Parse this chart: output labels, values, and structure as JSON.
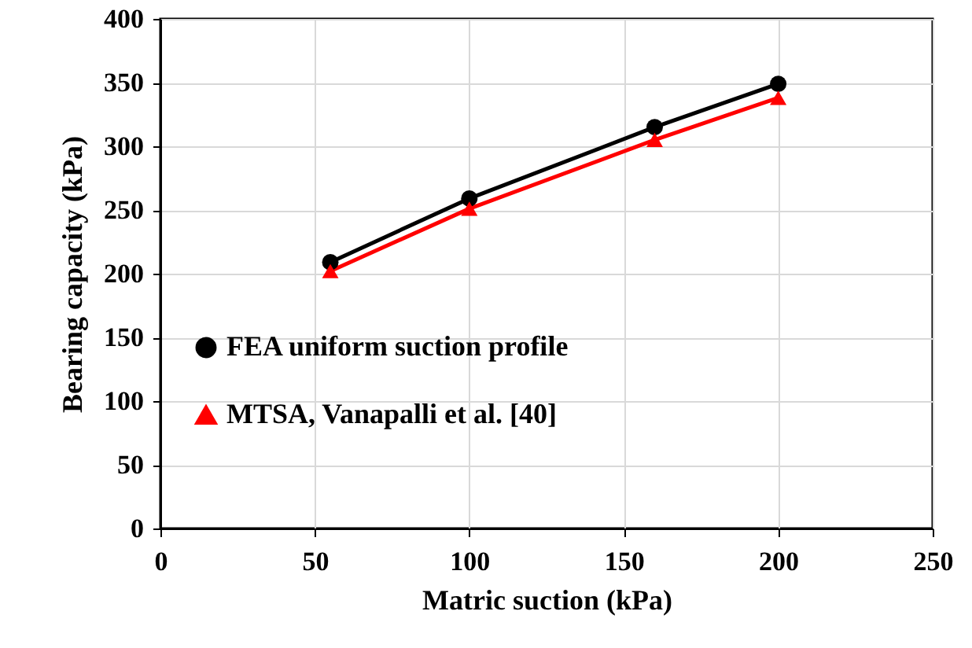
{
  "chart_data": {
    "type": "line",
    "xlabel": "Matric suction (kPa)",
    "ylabel": "Bearing capacity (kPa)",
    "x": [
      55,
      100,
      160,
      200
    ],
    "series": [
      {
        "name": "FEA uniform suction profile",
        "color": "#000000",
        "marker": "circle",
        "values": [
          209,
          259,
          315,
          349
        ]
      },
      {
        "name": "MTSA, Vanapalli et al. [40]",
        "color": "#ff0000",
        "marker": "triangle",
        "values": [
          202,
          251,
          305,
          338
        ]
      }
    ],
    "xlim": [
      0,
      250
    ],
    "xticks": [
      0,
      50,
      100,
      150,
      200,
      250
    ],
    "ylim": [
      0,
      400
    ],
    "yticks": [
      0,
      50,
      100,
      150,
      200,
      250,
      300,
      350,
      400
    ],
    "grid": true,
    "legend": "bottom left",
    "line_style": "solid"
  }
}
